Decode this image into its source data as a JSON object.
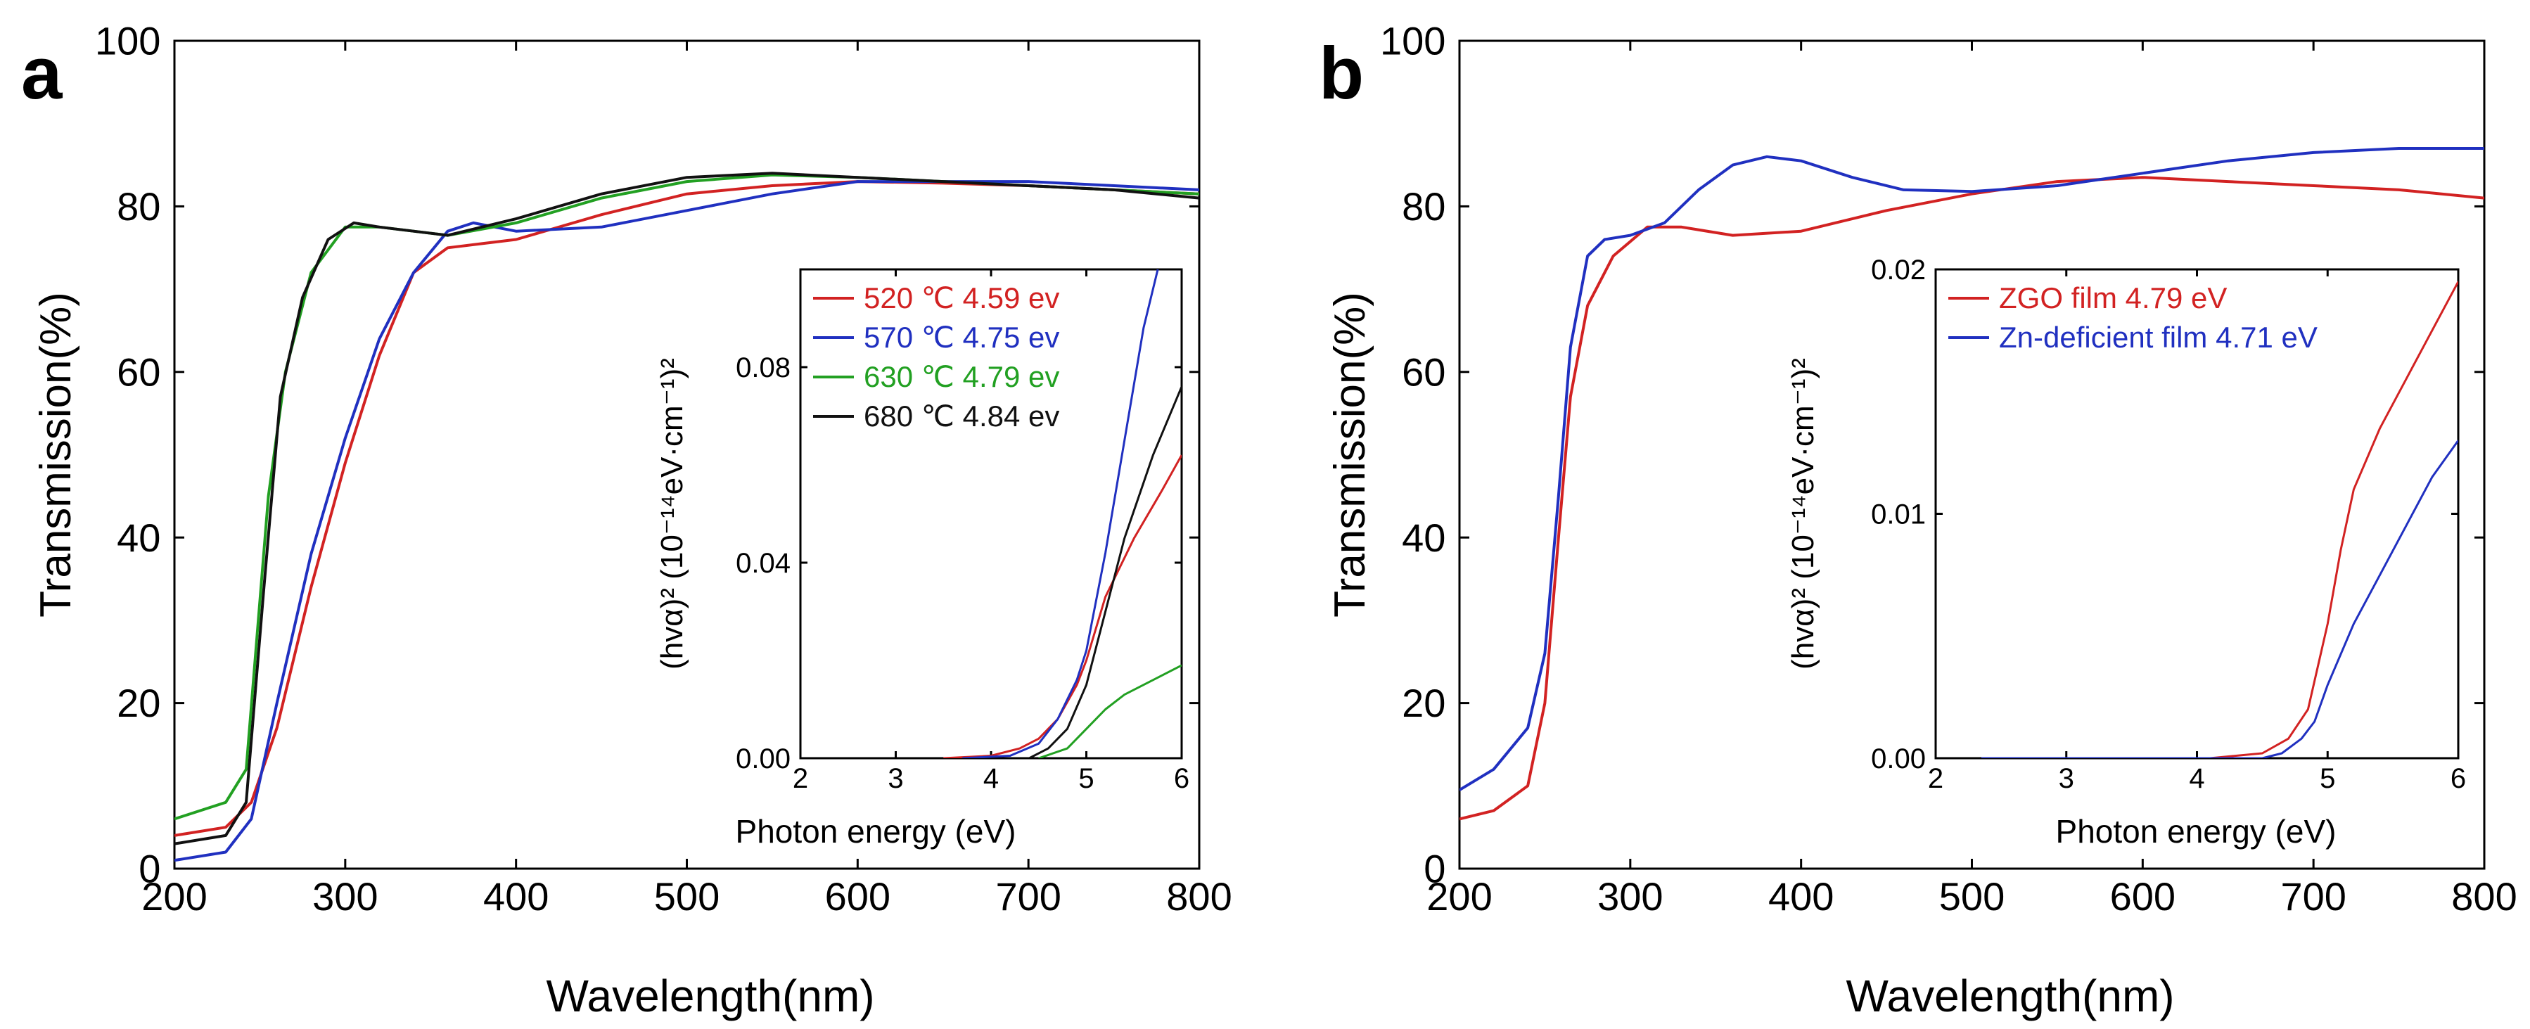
{
  "chart_data": [
    {
      "panel_label": "a",
      "type": "line",
      "xlabel": "Wavelength(nm)",
      "ylabel": "Transmission(%)",
      "xlim": [
        200,
        800
      ],
      "ylim": [
        0,
        100
      ],
      "xticks": [
        200,
        300,
        400,
        500,
        600,
        700,
        800
      ],
      "yticks": [
        0,
        20,
        40,
        60,
        80,
        100
      ],
      "series": [
        {
          "name": "520 ℃",
          "color": "#d22222",
          "x": [
            200,
            230,
            245,
            260,
            280,
            300,
            320,
            340,
            360,
            380,
            400,
            450,
            500,
            550,
            600,
            650,
            700,
            750,
            800
          ],
          "y": [
            4,
            5,
            8,
            17,
            34,
            49,
            62,
            72,
            75,
            75.5,
            76,
            79,
            81.5,
            82.5,
            83,
            82.8,
            82.5,
            82,
            81.5
          ]
        },
        {
          "name": "570 ℃",
          "color": "#2030c0",
          "x": [
            200,
            230,
            245,
            260,
            280,
            300,
            320,
            340,
            360,
            375,
            400,
            450,
            500,
            550,
            600,
            650,
            700,
            750,
            800
          ],
          "y": [
            1,
            2,
            6,
            20,
            38,
            52,
            64,
            72,
            77,
            78,
            77,
            77.5,
            79.5,
            81.5,
            83,
            83,
            83,
            82.5,
            82
          ]
        },
        {
          "name": "630 ℃",
          "color": "#22a022",
          "x": [
            200,
            230,
            242,
            255,
            265,
            280,
            300,
            320,
            340,
            360,
            400,
            450,
            500,
            550,
            600,
            650,
            700,
            750,
            800
          ],
          "y": [
            6,
            8,
            12,
            45,
            60,
            72,
            77.5,
            77.5,
            77,
            76.5,
            78,
            81,
            83,
            83.8,
            83.5,
            83,
            82.5,
            82,
            81.5
          ]
        },
        {
          "name": "680 ℃",
          "color": "#111111",
          "x": [
            200,
            230,
            242,
            252,
            262,
            275,
            290,
            305,
            320,
            340,
            360,
            400,
            450,
            500,
            550,
            600,
            650,
            700,
            750,
            800
          ],
          "y": [
            3,
            4,
            8,
            33,
            57,
            69,
            76,
            78,
            77.5,
            77,
            76.5,
            78.5,
            81.5,
            83.5,
            84,
            83.5,
            83,
            82.5,
            82,
            81
          ]
        }
      ],
      "inset": {
        "xlabel": "Photon energy (eV)",
        "ylabel": "(hvα)² (10⁻¹⁴eV·cm⁻¹)²",
        "xlim": [
          2,
          6
        ],
        "ylim": [
          0,
          0.1
        ],
        "xticks": [
          2,
          3,
          4,
          5,
          6
        ],
        "yticks": [
          0.0,
          0.04,
          0.08
        ],
        "ytick_labels": [
          "0.00",
          "0.04",
          "0.08"
        ],
        "legend": [
          {
            "temp": "520 ℃",
            "gap": "4.59 ev",
            "color": "#d22222"
          },
          {
            "temp": "570 ℃",
            "gap": "4.75 ev",
            "color": "#2030c0"
          },
          {
            "temp": "630 ℃",
            "gap": "4.79 ev",
            "color": "#22a022"
          },
          {
            "temp": "680 ℃",
            "gap": "4.84 ev",
            "color": "#111111"
          }
        ],
        "series": [
          {
            "name": "520 ℃",
            "color": "#d22222",
            "x": [
              3.5,
              4.0,
              4.3,
              4.5,
              4.7,
              4.9,
              5.0,
              5.2,
              5.5,
              5.8,
              6.0
            ],
            "y": [
              0,
              0.0005,
              0.002,
              0.004,
              0.008,
              0.015,
              0.02,
              0.033,
              0.045,
              0.055,
              0.062
            ]
          },
          {
            "name": "570 ℃",
            "color": "#2030c0",
            "x": [
              3.7,
              4.2,
              4.5,
              4.7,
              4.9,
              5.0,
              5.2,
              5.4,
              5.6,
              5.75
            ],
            "y": [
              0,
              0.0005,
              0.003,
              0.008,
              0.016,
              0.022,
              0.042,
              0.065,
              0.088,
              0.1
            ]
          },
          {
            "name": "630 ℃",
            "color": "#22a022",
            "x": [
              4.5,
              4.8,
              5.0,
              5.2,
              5.4,
              5.7,
              6.0
            ],
            "y": [
              0,
              0.002,
              0.006,
              0.01,
              0.013,
              0.016,
              0.019
            ]
          },
          {
            "name": "680 ℃",
            "color": "#111111",
            "x": [
              4.4,
              4.6,
              4.8,
              5.0,
              5.2,
              5.4,
              5.7,
              6.0
            ],
            "y": [
              0,
              0.002,
              0.006,
              0.015,
              0.03,
              0.045,
              0.062,
              0.076
            ]
          }
        ]
      }
    },
    {
      "panel_label": "b",
      "type": "line",
      "xlabel": "Wavelength(nm)",
      "ylabel": "Transmission(%)",
      "xlim": [
        200,
        800
      ],
      "ylim": [
        0,
        100
      ],
      "xticks": [
        200,
        300,
        400,
        500,
        600,
        700,
        800
      ],
      "yticks": [
        0,
        20,
        40,
        60,
        80,
        100
      ],
      "series": [
        {
          "name": "ZGO film",
          "color": "#d22222",
          "x": [
            200,
            220,
            240,
            250,
            258,
            265,
            275,
            290,
            310,
            330,
            360,
            400,
            450,
            500,
            550,
            600,
            650,
            700,
            750,
            800
          ],
          "y": [
            6,
            7,
            10,
            20,
            40,
            57,
            68,
            74,
            77.5,
            77.5,
            76.5,
            77,
            79.5,
            81.5,
            83,
            83.5,
            83,
            82.5,
            82,
            81
          ]
        },
        {
          "name": "Zn-deficient film",
          "color": "#2030c0",
          "x": [
            200,
            220,
            240,
            250,
            258,
            265,
            275,
            285,
            300,
            320,
            340,
            360,
            380,
            400,
            430,
            460,
            500,
            550,
            600,
            650,
            700,
            750,
            800
          ],
          "y": [
            9.5,
            12,
            17,
            26,
            45,
            63,
            74,
            76,
            76.5,
            78,
            82,
            85,
            86,
            85.5,
            83.5,
            82,
            81.8,
            82.5,
            84,
            85.5,
            86.5,
            87,
            87
          ]
        }
      ],
      "inset": {
        "xlabel": "Photon energy (eV)",
        "ylabel": "(hvα)² (10⁻¹⁴eV·cm⁻¹)²",
        "xlim": [
          2,
          6
        ],
        "ylim": [
          0,
          0.02
        ],
        "xticks": [
          2,
          3,
          4,
          5,
          6
        ],
        "yticks": [
          0.0,
          0.01,
          0.02
        ],
        "ytick_labels": [
          "0.00",
          "0.01",
          "0.02"
        ],
        "legend": [
          {
            "temp": "ZGO film",
            "gap": "4.79 eV",
            "color": "#d22222"
          },
          {
            "temp": "Zn-deficient film",
            "gap": "4.71 eV",
            "color": "#2030c0"
          }
        ],
        "series": [
          {
            "name": "ZGO film",
            "color": "#d22222",
            "x": [
              4.1,
              4.5,
              4.7,
              4.85,
              5.0,
              5.1,
              5.2,
              5.4,
              5.6,
              5.8,
              6.0
            ],
            "y": [
              0,
              0.0002,
              0.0008,
              0.002,
              0.0055,
              0.0085,
              0.011,
              0.0135,
              0.0155,
              0.0175,
              0.0195
            ]
          },
          {
            "name": "Zn-deficient film",
            "color": "#2030c0",
            "x": [
              2.35,
              4.5,
              4.65,
              4.8,
              4.9,
              5.0,
              5.2,
              5.4,
              5.6,
              5.8,
              6.0
            ],
            "y": [
              0,
              0,
              0.0002,
              0.0008,
              0.0015,
              0.003,
              0.0055,
              0.0075,
              0.0095,
              0.0115,
              0.013
            ]
          }
        ]
      }
    }
  ]
}
